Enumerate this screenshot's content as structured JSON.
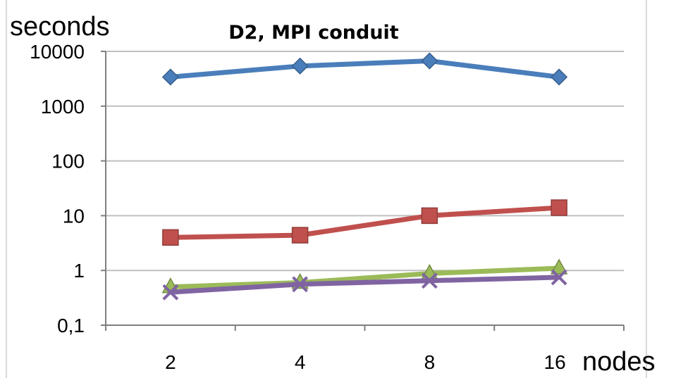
{
  "chart_data": {
    "type": "line",
    "title": "D2, MPI conduit",
    "ylabel": "seconds",
    "xlabel": "nodes",
    "categories": [
      "2",
      "4",
      "8",
      "16"
    ],
    "y_scale": "log",
    "ylim": [
      0.1,
      10000
    ],
    "y_ticks": [
      "0,1",
      "1",
      "10",
      "100",
      "1000",
      "10000"
    ],
    "y_tick_values": [
      0.1,
      1,
      10,
      100,
      1000,
      10000
    ],
    "grid": "horizontal",
    "legend": "none",
    "series": [
      {
        "color": "#4a7ebb",
        "marker": "diamond",
        "values": [
          3400,
          5400,
          6700,
          3400
        ]
      },
      {
        "color": "#c0504d",
        "marker": "square",
        "values": [
          4.0,
          4.4,
          10,
          14
        ]
      },
      {
        "color": "#9bbb59",
        "marker": "triangle",
        "values": [
          0.5,
          0.6,
          0.88,
          1.1
        ]
      },
      {
        "color": "#8064a2",
        "marker": "cross",
        "values": [
          0.4,
          0.56,
          0.65,
          0.75
        ]
      }
    ]
  }
}
